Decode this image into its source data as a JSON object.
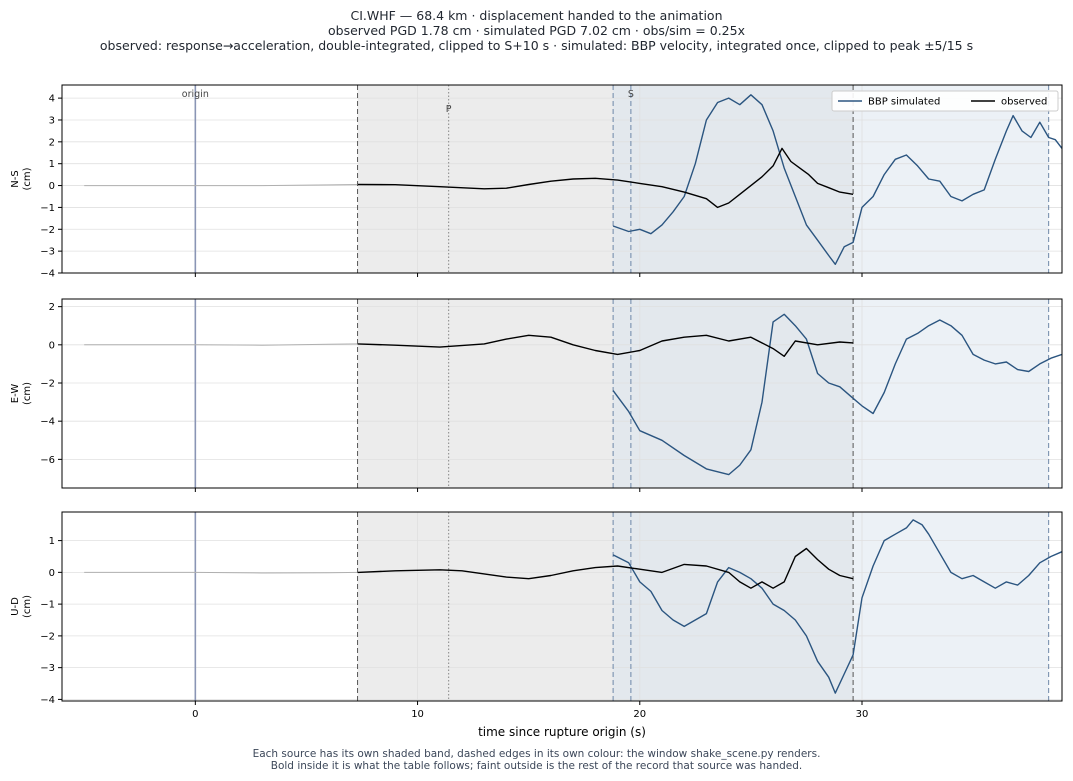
{
  "header": {
    "line1": "CI.WHF  —  68.4 km   ·   displacement handed to the animation",
    "line2": "observed PGD 1.78 cm   ·   simulated PGD 7.02 cm   ·   obs/sim = 0.25x",
    "line3": "observed: response→acceleration, double-integrated, clipped to S+10 s   ·   simulated: BBP velocity, integrated once, clipped to peak ±5/15 s"
  },
  "footer": {
    "line1": "Each source has its own shaded band, dashed edges in its own colour: the window shake_scene.py renders.",
    "line2": "Bold inside it is what the table follows;   faint outside is the rest of the record that source was handed."
  },
  "colors": {
    "simulated": "#2b5580",
    "observed": "#000000",
    "observed_faint": "#b0b0b0",
    "obs_band": "#ececec",
    "sim_band": "#dde6ef",
    "origin_line": "#8a95b5"
  },
  "chart_data": {
    "type": "line",
    "xlabel": "time since rupture origin (s)",
    "xlim": [
      -6,
      39
    ],
    "x_ticks": [
      0,
      10,
      20,
      30
    ],
    "legend": {
      "placement": "top-right",
      "entries": [
        "BBP simulated",
        "observed"
      ]
    },
    "markers": {
      "origin": 0,
      "origin_label": "origin",
      "p": 11.4,
      "p_label": "P",
      "s": 19.6,
      "s_label": "S"
    },
    "observed_window": [
      7.3,
      29.6
    ],
    "simulated_window": [
      18.8,
      38.4
    ],
    "grid": true,
    "panels": [
      {
        "ylabel": "N-S\n(cm)",
        "ylim": [
          -4,
          4.6
        ],
        "y_ticks": [
          -4,
          -3,
          -2,
          -1,
          0,
          1,
          2,
          3,
          4
        ],
        "observed_faint": [
          [
            -5,
            0
          ],
          [
            0,
            0
          ],
          [
            3,
            0
          ],
          [
            6,
            0.03
          ],
          [
            7.3,
            0.05
          ]
        ],
        "observed": [
          [
            7.3,
            0.05
          ],
          [
            9,
            0.04
          ],
          [
            11,
            -0.05
          ],
          [
            13,
            -0.15
          ],
          [
            14,
            -0.12
          ],
          [
            15,
            0.05
          ],
          [
            16,
            0.2
          ],
          [
            17,
            0.3
          ],
          [
            18,
            0.33
          ],
          [
            19,
            0.25
          ],
          [
            20,
            0.1
          ],
          [
            21,
            -0.05
          ],
          [
            22,
            -0.3
          ],
          [
            23,
            -0.6
          ],
          [
            23.5,
            -1.0
          ],
          [
            24,
            -0.8
          ],
          [
            24.5,
            -0.4
          ],
          [
            25,
            0.0
          ],
          [
            25.5,
            0.4
          ],
          [
            26,
            0.9
          ],
          [
            26.4,
            1.7
          ],
          [
            26.8,
            1.1
          ],
          [
            27.2,
            0.8
          ],
          [
            27.6,
            0.5
          ],
          [
            28,
            0.1
          ],
          [
            28.5,
            -0.1
          ],
          [
            29,
            -0.3
          ],
          [
            29.6,
            -0.4
          ]
        ],
        "simulated": [
          [
            18.8,
            -1.85
          ],
          [
            19.5,
            -2.1
          ],
          [
            20,
            -2.0
          ],
          [
            20.5,
            -2.2
          ],
          [
            21,
            -1.8
          ],
          [
            21.5,
            -1.2
          ],
          [
            22,
            -0.5
          ],
          [
            22.5,
            1.0
          ],
          [
            23,
            3.0
          ],
          [
            23.5,
            3.8
          ],
          [
            24,
            4.0
          ],
          [
            24.5,
            3.7
          ],
          [
            25,
            4.15
          ],
          [
            25.5,
            3.7
          ],
          [
            26,
            2.5
          ],
          [
            26.5,
            0.8
          ],
          [
            27,
            -0.5
          ],
          [
            27.5,
            -1.8
          ],
          [
            28,
            -2.5
          ],
          [
            28.5,
            -3.2
          ],
          [
            28.8,
            -3.6
          ],
          [
            29.2,
            -2.8
          ],
          [
            29.6,
            -2.6
          ],
          [
            30,
            -1.0
          ],
          [
            30.5,
            -0.5
          ],
          [
            31,
            0.5
          ],
          [
            31.5,
            1.2
          ],
          [
            32,
            1.4
          ],
          [
            32.5,
            0.9
          ],
          [
            33,
            0.3
          ],
          [
            33.5,
            0.2
          ],
          [
            34,
            -0.5
          ],
          [
            34.5,
            -0.7
          ],
          [
            35,
            -0.4
          ],
          [
            35.5,
            -0.2
          ],
          [
            36,
            1.2
          ],
          [
            36.5,
            2.5
          ],
          [
            36.8,
            3.2
          ],
          [
            37.2,
            2.5
          ],
          [
            37.6,
            2.2
          ],
          [
            38,
            2.9
          ],
          [
            38.4,
            2.2
          ],
          [
            38.7,
            2.1
          ],
          [
            39,
            1.7
          ]
        ]
      },
      {
        "ylabel": "E-W\n(cm)",
        "ylim": [
          -7.5,
          2.4
        ],
        "y_ticks": [
          -6,
          -4,
          -2,
          0,
          2
        ],
        "observed_faint": [
          [
            -5,
            0
          ],
          [
            0,
            0
          ],
          [
            3,
            -0.02
          ],
          [
            6,
            0.03
          ],
          [
            7.3,
            0.05
          ]
        ],
        "observed": [
          [
            7.3,
            0.05
          ],
          [
            9,
            -0.02
          ],
          [
            11,
            -0.12
          ],
          [
            13,
            0.05
          ],
          [
            14,
            0.3
          ],
          [
            15,
            0.5
          ],
          [
            16,
            0.4
          ],
          [
            17,
            0.0
          ],
          [
            18,
            -0.3
          ],
          [
            19,
            -0.5
          ],
          [
            20,
            -0.3
          ],
          [
            21,
            0.2
          ],
          [
            22,
            0.4
          ],
          [
            23,
            0.5
          ],
          [
            24,
            0.2
          ],
          [
            25,
            0.4
          ],
          [
            26,
            -0.2
          ],
          [
            26.5,
            -0.6
          ],
          [
            27,
            0.2
          ],
          [
            28,
            0.0
          ],
          [
            29,
            0.15
          ],
          [
            29.6,
            0.1
          ]
        ],
        "simulated": [
          [
            18.8,
            -2.4
          ],
          [
            19.5,
            -3.5
          ],
          [
            20,
            -4.5
          ],
          [
            21,
            -5.0
          ],
          [
            22,
            -5.8
          ],
          [
            23,
            -6.5
          ],
          [
            24,
            -6.8
          ],
          [
            24.5,
            -6.3
          ],
          [
            25,
            -5.5
          ],
          [
            25.5,
            -3.0
          ],
          [
            26,
            1.2
          ],
          [
            26.5,
            1.6
          ],
          [
            27,
            1.0
          ],
          [
            27.5,
            0.3
          ],
          [
            28,
            -1.5
          ],
          [
            28.5,
            -2.0
          ],
          [
            29,
            -2.2
          ],
          [
            29.6,
            -2.8
          ],
          [
            30,
            -3.2
          ],
          [
            30.5,
            -3.6
          ],
          [
            31,
            -2.5
          ],
          [
            31.5,
            -1.0
          ],
          [
            32,
            0.3
          ],
          [
            32.5,
            0.6
          ],
          [
            33,
            1.0
          ],
          [
            33.5,
            1.3
          ],
          [
            34,
            1.0
          ],
          [
            34.5,
            0.5
          ],
          [
            35,
            -0.5
          ],
          [
            35.5,
            -0.8
          ],
          [
            36,
            -1.0
          ],
          [
            36.5,
            -0.9
          ],
          [
            37,
            -1.3
          ],
          [
            37.5,
            -1.4
          ],
          [
            38,
            -1.0
          ],
          [
            38.5,
            -0.7
          ],
          [
            39,
            -0.5
          ]
        ]
      },
      {
        "ylabel": "U-D\n(cm)",
        "ylim": [
          -4.05,
          1.9
        ],
        "y_ticks": [
          -4,
          -3,
          -2,
          -1,
          0,
          1
        ],
        "observed_faint": [
          [
            -5,
            0
          ],
          [
            0,
            0
          ],
          [
            3,
            -0.02
          ],
          [
            6,
            -0.01
          ],
          [
            7.3,
            0.0
          ]
        ],
        "observed": [
          [
            7.3,
            0.0
          ],
          [
            9,
            0.05
          ],
          [
            11,
            0.08
          ],
          [
            12,
            0.05
          ],
          [
            13,
            -0.05
          ],
          [
            14,
            -0.15
          ],
          [
            15,
            -0.2
          ],
          [
            16,
            -0.1
          ],
          [
            17,
            0.05
          ],
          [
            18,
            0.15
          ],
          [
            19,
            0.2
          ],
          [
            20,
            0.1
          ],
          [
            21,
            0.0
          ],
          [
            22,
            0.25
          ],
          [
            23,
            0.2
          ],
          [
            24,
            0.0
          ],
          [
            24.5,
            -0.3
          ],
          [
            25,
            -0.5
          ],
          [
            25.5,
            -0.3
          ],
          [
            26,
            -0.5
          ],
          [
            26.5,
            -0.3
          ],
          [
            27,
            0.5
          ],
          [
            27.5,
            0.75
          ],
          [
            28,
            0.4
          ],
          [
            28.5,
            0.1
          ],
          [
            29,
            -0.1
          ],
          [
            29.6,
            -0.2
          ]
        ],
        "simulated": [
          [
            18.8,
            0.55
          ],
          [
            19.5,
            0.3
          ],
          [
            20,
            -0.3
          ],
          [
            20.5,
            -0.6
          ],
          [
            21,
            -1.2
          ],
          [
            21.5,
            -1.5
          ],
          [
            22,
            -1.7
          ],
          [
            22.5,
            -1.5
          ],
          [
            23,
            -1.3
          ],
          [
            23.5,
            -0.3
          ],
          [
            24,
            0.15
          ],
          [
            24.5,
            0.0
          ],
          [
            25,
            -0.2
          ],
          [
            25.5,
            -0.5
          ],
          [
            26,
            -1.0
          ],
          [
            26.5,
            -1.2
          ],
          [
            27,
            -1.5
          ],
          [
            27.5,
            -2.0
          ],
          [
            28,
            -2.8
          ],
          [
            28.5,
            -3.3
          ],
          [
            28.8,
            -3.8
          ],
          [
            29.2,
            -3.2
          ],
          [
            29.6,
            -2.6
          ],
          [
            30,
            -0.8
          ],
          [
            30.5,
            0.2
          ],
          [
            31,
            1.0
          ],
          [
            31.5,
            1.2
          ],
          [
            32,
            1.4
          ],
          [
            32.3,
            1.65
          ],
          [
            32.7,
            1.5
          ],
          [
            33,
            1.2
          ],
          [
            33.5,
            0.6
          ],
          [
            34,
            0.0
          ],
          [
            34.5,
            -0.2
          ],
          [
            35,
            -0.1
          ],
          [
            35.5,
            -0.3
          ],
          [
            36,
            -0.5
          ],
          [
            36.5,
            -0.3
          ],
          [
            37,
            -0.4
          ],
          [
            37.5,
            -0.1
          ],
          [
            38,
            0.3
          ],
          [
            38.5,
            0.5
          ],
          [
            39,
            0.65
          ]
        ]
      }
    ]
  }
}
